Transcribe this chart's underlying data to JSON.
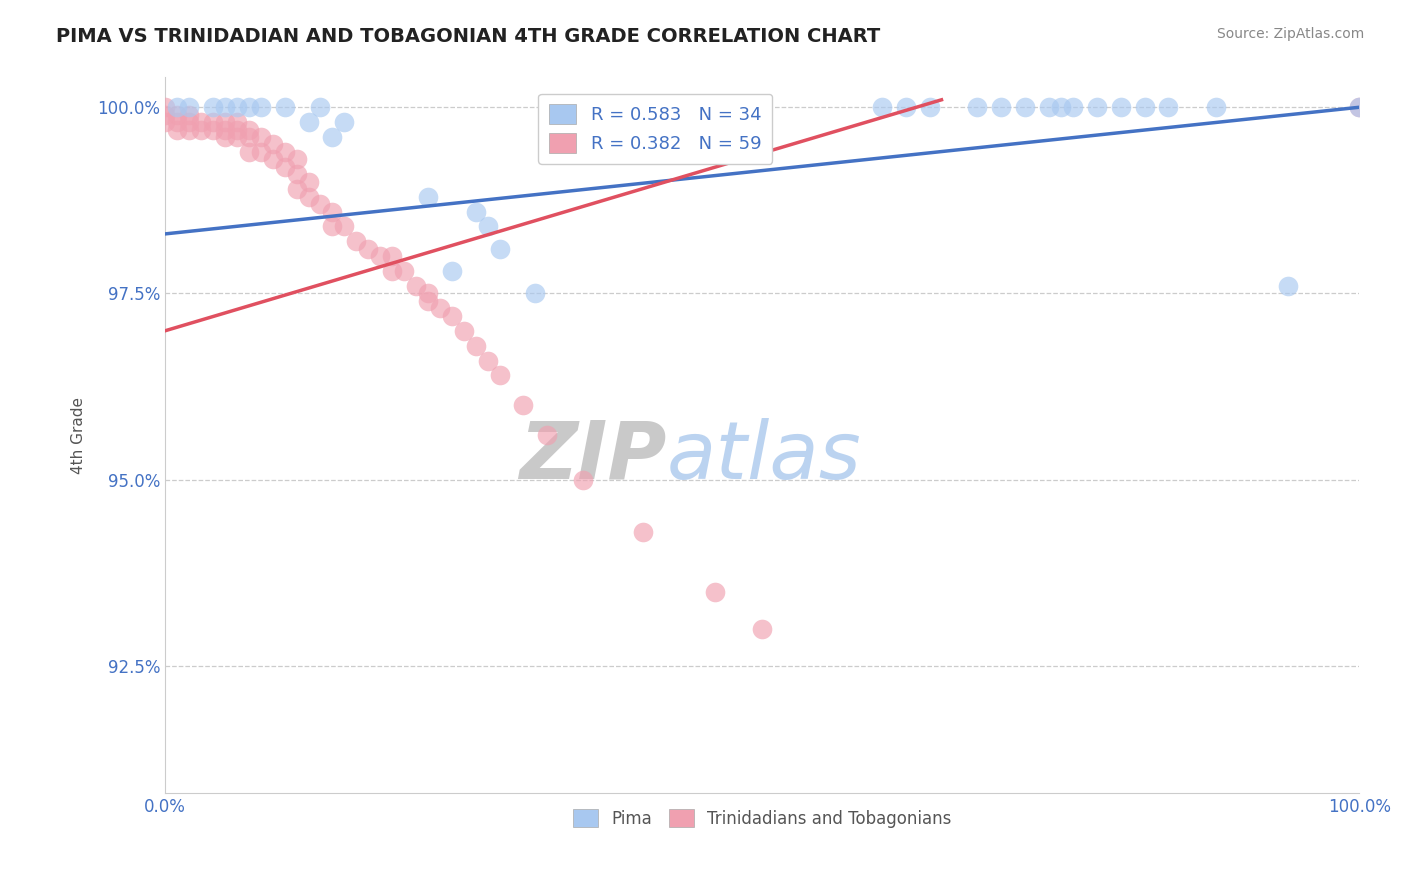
{
  "title": "PIMA VS TRINIDADIAN AND TOBAGONIAN 4TH GRADE CORRELATION CHART",
  "source_text": "Source: ZipAtlas.com",
  "ylabel": "4th Grade",
  "xlim": [
    0.0,
    1.0
  ],
  "ylim": [
    0.908,
    1.004
  ],
  "yticks": [
    0.925,
    0.95,
    0.975,
    1.0
  ],
  "ytick_labels": [
    "92.5%",
    "95.0%",
    "97.5%",
    "100.0%"
  ],
  "xtick_labels": [
    "0.0%",
    "100.0%"
  ],
  "xtick_vals": [
    0.0,
    1.0
  ],
  "legend_blue_label": "R = 0.583   N = 34",
  "legend_pink_label": "R = 0.382   N = 59",
  "blue_color": "#a8c8f0",
  "pink_color": "#f0a0b0",
  "blue_line_color": "#4472c4",
  "pink_line_color": "#e05060",
  "watermark_zip": "ZIP",
  "watermark_atlas": "atlas",
  "watermark_color_zip": "#c8c8c8",
  "watermark_color_atlas": "#b0ccee",
  "blue_scatter_x": [
    0.01,
    0.02,
    0.04,
    0.05,
    0.06,
    0.07,
    0.08,
    0.1,
    0.12,
    0.13,
    0.14,
    0.15,
    0.22,
    0.24,
    0.26,
    0.27,
    0.28,
    0.31,
    0.6,
    0.62,
    0.64,
    0.68,
    0.7,
    0.72,
    0.74,
    0.75,
    0.76,
    0.78,
    0.8,
    0.82,
    0.84,
    0.88,
    0.94,
    1.0
  ],
  "blue_scatter_y": [
    1.0,
    1.0,
    1.0,
    1.0,
    1.0,
    1.0,
    1.0,
    1.0,
    0.998,
    1.0,
    0.996,
    0.998,
    0.988,
    0.978,
    0.986,
    0.984,
    0.981,
    0.975,
    1.0,
    1.0,
    1.0,
    1.0,
    1.0,
    1.0,
    1.0,
    1.0,
    1.0,
    1.0,
    1.0,
    1.0,
    1.0,
    1.0,
    0.976,
    1.0
  ],
  "pink_scatter_x": [
    0.0,
    0.0,
    0.0,
    0.01,
    0.01,
    0.01,
    0.02,
    0.02,
    0.02,
    0.03,
    0.03,
    0.04,
    0.04,
    0.05,
    0.05,
    0.05,
    0.06,
    0.06,
    0.06,
    0.07,
    0.07,
    0.07,
    0.08,
    0.08,
    0.09,
    0.09,
    0.1,
    0.1,
    0.11,
    0.11,
    0.11,
    0.12,
    0.12,
    0.13,
    0.14,
    0.14,
    0.15,
    0.16,
    0.17,
    0.18,
    0.19,
    0.19,
    0.2,
    0.21,
    0.22,
    0.22,
    0.23,
    0.24,
    0.25,
    0.26,
    0.27,
    0.28,
    0.3,
    0.32,
    0.35,
    0.4,
    0.46,
    0.5,
    1.0
  ],
  "pink_scatter_y": [
    1.0,
    0.999,
    0.998,
    0.999,
    0.998,
    0.997,
    0.999,
    0.998,
    0.997,
    0.998,
    0.997,
    0.998,
    0.997,
    0.998,
    0.997,
    0.996,
    0.998,
    0.997,
    0.996,
    0.997,
    0.996,
    0.994,
    0.996,
    0.994,
    0.995,
    0.993,
    0.994,
    0.992,
    0.993,
    0.991,
    0.989,
    0.99,
    0.988,
    0.987,
    0.986,
    0.984,
    0.984,
    0.982,
    0.981,
    0.98,
    0.98,
    0.978,
    0.978,
    0.976,
    0.975,
    0.974,
    0.973,
    0.972,
    0.97,
    0.968,
    0.966,
    0.964,
    0.96,
    0.956,
    0.95,
    0.943,
    0.935,
    0.93,
    1.0
  ],
  "blue_trendline_x": [
    0.0,
    1.0
  ],
  "blue_trendline_y": [
    0.983,
    1.0
  ],
  "pink_trendline_x": [
    0.0,
    0.65
  ],
  "pink_trendline_y": [
    0.97,
    1.001
  ],
  "axis_label_color": "#555555",
  "tick_label_color": "#4472c4",
  "grid_color": "#cccccc",
  "background_color": "#ffffff"
}
